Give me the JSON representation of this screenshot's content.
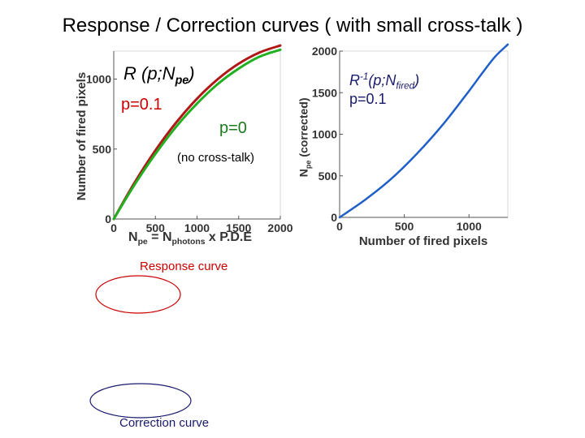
{
  "slide": {
    "title": "Response / Correction curves ( with small cross-talk )",
    "response_caption": "Response curve",
    "correction_caption": "Correction curve"
  },
  "colors": {
    "red_curve": "#b01818",
    "green_curve": "#22b022",
    "blue_curve": "#1f5fc8",
    "red_ellipse": "#cc0000",
    "navy_ellipse": "#1a1a6e"
  },
  "chart_data": [
    {
      "type": "line",
      "name": "response",
      "title": "",
      "xlabel": "N_pe = N_photons x P.D.E",
      "ylabel": "Number of fired pixels",
      "xlim": [
        0,
        2000
      ],
      "ylim": [
        0,
        1200
      ],
      "xticks": [
        0,
        500,
        1000,
        1500,
        2000
      ],
      "yticks": [
        0,
        500,
        1000
      ],
      "annotations": {
        "fn": "R (p;N",
        "fn_sub": "pe",
        "fn_close": ")",
        "p_red": "p=0.1",
        "p_green": "p=0",
        "no_crosstalk": "(no cross-talk)"
      },
      "series": [
        {
          "name": "p=0.1",
          "color": "red",
          "x": [
            0,
            250,
            500,
            750,
            1000,
            1250,
            1500,
            1750,
            2000
          ],
          "y": [
            0,
            260,
            490,
            690,
            860,
            1000,
            1110,
            1190,
            1240
          ]
        },
        {
          "name": "p=0",
          "color": "green",
          "x": [
            0,
            250,
            500,
            750,
            1000,
            1250,
            1500,
            1750,
            2000
          ],
          "y": [
            0,
            245,
            465,
            660,
            825,
            965,
            1075,
            1160,
            1210
          ]
        }
      ]
    },
    {
      "type": "line",
      "name": "correction",
      "title": "",
      "xlabel": "Number of fired pixels",
      "ylabel": "N_pe (corrected)",
      "xlim": [
        0,
        1300
      ],
      "ylim": [
        0,
        2000
      ],
      "xticks": [
        0,
        500,
        1000
      ],
      "yticks": [
        0,
        500,
        1000,
        1500,
        2000
      ],
      "annotations": {
        "fn": "R",
        "fn_sup": "-1",
        "fn_mid": "(p;N",
        "fn_sub": "fired",
        "fn_close": ")",
        "p_label": "p=0.1"
      },
      "series": [
        {
          "name": "p=0.1",
          "color": "blue",
          "x": [
            0,
            200,
            400,
            600,
            800,
            1000,
            1100,
            1200,
            1300
          ],
          "y": [
            0,
            215,
            465,
            770,
            1120,
            1520,
            1730,
            1930,
            2080
          ]
        }
      ]
    }
  ]
}
